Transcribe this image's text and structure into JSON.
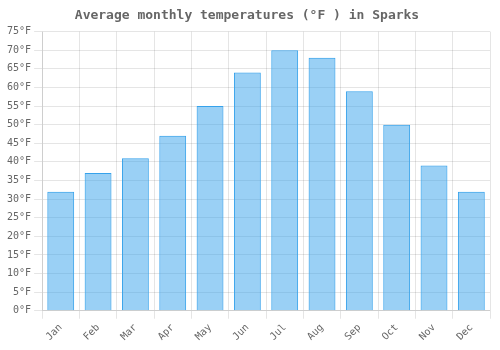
{
  "chart_data": {
    "type": "bar",
    "title": "Average monthly temperatures (°F ) in Sparks",
    "categories": [
      "Jan",
      "Feb",
      "Mar",
      "Apr",
      "May",
      "Jun",
      "Jul",
      "Aug",
      "Sep",
      "Oct",
      "Nov",
      "Dec"
    ],
    "values": [
      32,
      37,
      41,
      47,
      55,
      64,
      70,
      68,
      59,
      50,
      39,
      32
    ],
    "ylim": [
      0,
      75
    ],
    "yticks": [
      {
        "value": 0,
        "label": "0°F"
      },
      {
        "value": 5,
        "label": "5°F"
      },
      {
        "value": 10,
        "label": "10°F"
      },
      {
        "value": 15,
        "label": "15°F"
      },
      {
        "value": 20,
        "label": "20°F"
      },
      {
        "value": 25,
        "label": "25°F"
      },
      {
        "value": 30,
        "label": "30°F"
      },
      {
        "value": 35,
        "label": "35°F"
      },
      {
        "value": 40,
        "label": "40°F"
      },
      {
        "value": 45,
        "label": "45°F"
      },
      {
        "value": 50,
        "label": "50°F"
      },
      {
        "value": 55,
        "label": "55°F"
      },
      {
        "value": 60,
        "label": "60°F"
      },
      {
        "value": 65,
        "label": "65°F"
      },
      {
        "value": 70,
        "label": "70°F"
      },
      {
        "value": 75,
        "label": "75°F"
      }
    ],
    "grid": true
  }
}
